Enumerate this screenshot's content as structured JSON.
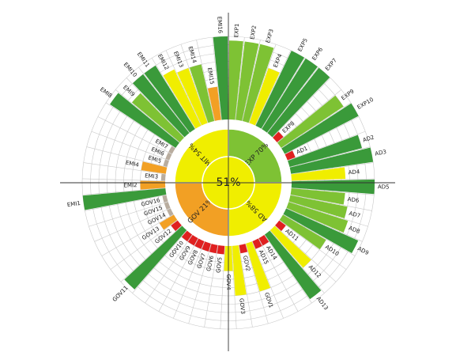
{
  "colors": {
    "dark_green": "#3a9a3a",
    "green": "#7ec234",
    "yellow": "#f0ee00",
    "orange": "#f2a024",
    "red": "#e02020",
    "gray": "#b9ad9f",
    "ring_line": "#c8c8c8",
    "axis": "#333333"
  },
  "chart_data": {
    "type": "radial-bar",
    "center_label": "51%",
    "quadrants": [
      {
        "label": "EXP 70%",
        "color": "green"
      },
      {
        "label": "AD 58%",
        "color": "yellow"
      },
      {
        "label": "GOV 21%",
        "color": "orange"
      },
      {
        "label": "MIT 54%",
        "color": "yellow"
      }
    ],
    "bars": [
      {
        "label": "EXP1",
        "value": 9.5,
        "color": "green"
      },
      {
        "label": "EXP2",
        "value": 9.5,
        "color": "green"
      },
      {
        "label": "EXP3",
        "value": 9.5,
        "color": "green"
      },
      {
        "label": "EXP4",
        "value": 7,
        "color": "yellow"
      },
      {
        "label": "EXP5",
        "value": 10,
        "color": "dark_green"
      },
      {
        "label": "EXP6",
        "value": 10,
        "color": "dark_green"
      },
      {
        "label": "EXP7",
        "value": 10,
        "color": "dark_green"
      },
      {
        "label": "EXP8",
        "value": 1,
        "color": "red"
      },
      {
        "label": "EXP9",
        "value": 9,
        "color": "green"
      },
      {
        "label": "EXP10",
        "value": 10,
        "color": "dark_green"
      },
      {
        "label": "AD1",
        "value": 1,
        "color": "red"
      },
      {
        "label": "AD2",
        "value": 9,
        "color": "dark_green"
      },
      {
        "label": "AD3",
        "value": 10,
        "color": "dark_green"
      },
      {
        "label": "AD4",
        "value": 6.5,
        "color": "yellow"
      },
      {
        "label": "AD5",
        "value": 10,
        "color": "dark_green"
      },
      {
        "label": "AD6",
        "value": 6.5,
        "color": "green"
      },
      {
        "label": "AD7",
        "value": 7,
        "color": "green"
      },
      {
        "label": "AD8",
        "value": 7.5,
        "color": "green"
      },
      {
        "label": "AD9",
        "value": 9.5,
        "color": "dark_green"
      },
      {
        "label": "AD10",
        "value": 6,
        "color": "green"
      },
      {
        "label": "AD11",
        "value": 1,
        "color": "red"
      },
      {
        "label": "AD12",
        "value": 6,
        "color": "yellow"
      },
      {
        "label": "AD13",
        "value": 9.5,
        "color": "dark_green"
      },
      {
        "label": "AD14",
        "value": 1,
        "color": "red"
      },
      {
        "label": "AD15",
        "value": 1,
        "color": "red"
      },
      {
        "label": "GOV1",
        "value": 6,
        "color": "yellow"
      },
      {
        "label": "GOV2",
        "value": 1,
        "color": "red"
      },
      {
        "label": "GOV3",
        "value": 6,
        "color": "yellow"
      },
      {
        "label": "GOV4",
        "value": 3,
        "color": "yellow"
      },
      {
        "label": "GOV5",
        "value": 1,
        "color": "red"
      },
      {
        "label": "GOV6",
        "value": 1,
        "color": "red"
      },
      {
        "label": "GOV7",
        "value": 1,
        "color": "red"
      },
      {
        "label": "GOV8",
        "value": 1,
        "color": "red"
      },
      {
        "label": "GOV9",
        "value": 1,
        "color": "red"
      },
      {
        "label": "GOV10",
        "value": 1,
        "color": "red"
      },
      {
        "label": "GOV11",
        "value": 9.5,
        "color": "dark_green"
      },
      {
        "label": "GOV12",
        "value": 1,
        "color": "red"
      },
      {
        "label": "GOV13",
        "value": 2,
        "color": "orange"
      },
      {
        "label": "GOV14",
        "value": 0.5,
        "color": "gray"
      },
      {
        "label": "GOV15",
        "value": 0.5,
        "color": "gray"
      },
      {
        "label": "GOV16",
        "value": 0.5,
        "color": "gray"
      },
      {
        "label": "EMI1",
        "value": 10,
        "color": "dark_green"
      },
      {
        "label": "EMI2",
        "value": 3,
        "color": "orange"
      },
      {
        "label": "EMI3",
        "value": 0.5,
        "color": "gray"
      },
      {
        "label": "EMI4",
        "value": 3,
        "color": "orange"
      },
      {
        "label": "EMI5",
        "value": 0.5,
        "color": "gray"
      },
      {
        "label": "EMI6",
        "value": 0.5,
        "color": "gray"
      },
      {
        "label": "EMI7",
        "value": 0.5,
        "color": "gray"
      },
      {
        "label": "EMI8",
        "value": 9.5,
        "color": "dark_green"
      },
      {
        "label": "EMI9",
        "value": 7.5,
        "color": "green"
      },
      {
        "label": "EMI10",
        "value": 9,
        "color": "dark_green"
      },
      {
        "label": "EMI11",
        "value": 9,
        "color": "dark_green"
      },
      {
        "label": "EMI12",
        "value": 7.5,
        "color": "yellow"
      },
      {
        "label": "EMI13",
        "value": 7,
        "color": "yellow"
      },
      {
        "label": "EMI14",
        "value": 7,
        "color": "green"
      },
      {
        "label": "EMI15",
        "value": 4,
        "color": "orange"
      },
      {
        "label": "EMI16",
        "value": 10,
        "color": "dark_green"
      }
    ]
  }
}
